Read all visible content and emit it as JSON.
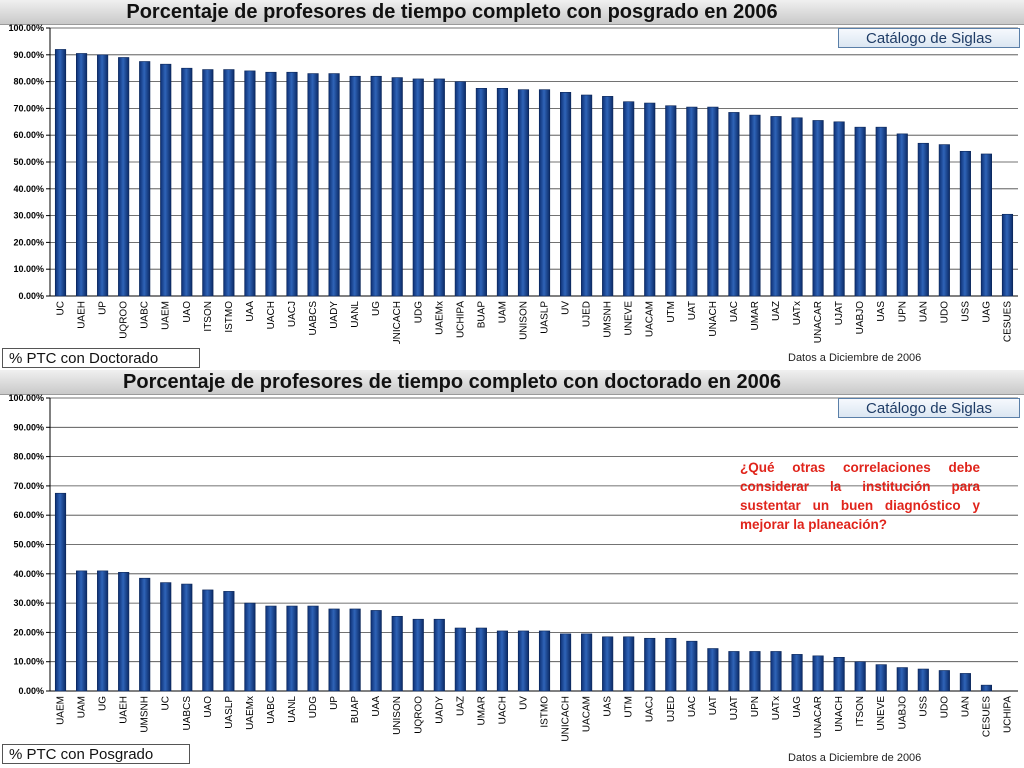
{
  "top_panel": {
    "catalog_button": "Catálogo de Siglas",
    "link_button": "% PTC con Doctorado",
    "date_note": "Datos a Diciembre de 2006"
  },
  "bottom_panel": {
    "catalog_button": "Catálogo de Siglas",
    "link_button": "% PTC con Posgrado",
    "date_note": "Datos a Diciembre de 2006",
    "question": "¿Qué otras correlaciones debe considerar la institución para sustentar un buen diagnóstico y mejorar la planeación?"
  },
  "chart_data": [
    {
      "type": "bar",
      "title": "Porcentaje de profesores de tiempo completo con posgrado en 2006",
      "xlabel": "",
      "ylabel": "",
      "ylim": [
        0,
        100
      ],
      "ytick_step": 10,
      "ytick_labels": [
        "0.00%",
        "10.00%",
        "20.00%",
        "30.00%",
        "40.00%",
        "50.00%",
        "60.00%",
        "70.00%",
        "80.00%",
        "90.00%",
        "100.00%"
      ],
      "grid": true,
      "categories": [
        "UC",
        "UAEH",
        "UP",
        "UQROO",
        "UABC",
        "UAEM",
        "UAO",
        "ITSON",
        "ISTMO",
        "UAA",
        "UACH",
        "UACJ",
        "UABCS",
        "UADY",
        "UANL",
        "UG",
        "UNICACH",
        "UDG",
        "UAEMx",
        "UCHIPA",
        "BUAP",
        "UAM",
        "UNISON",
        "UASLP",
        "UV",
        "UJED",
        "UMSNH",
        "UNEVE",
        "UACAM",
        "UTM",
        "UAT",
        "UNACH",
        "UAC",
        "UMAR",
        "UAZ",
        "UATx",
        "UNACAR",
        "UJAT",
        "UABJO",
        "UAS",
        "UPN",
        "UAN",
        "UDO",
        "USS",
        "UAG",
        "CESUES"
      ],
      "values": [
        92,
        90.5,
        90,
        89,
        87.5,
        86.5,
        85,
        84.5,
        84.5,
        84,
        83.5,
        83.5,
        83,
        83,
        82,
        82,
        81.5,
        81,
        81,
        80,
        77.5,
        77.5,
        77,
        77,
        76,
        75,
        74.5,
        72.5,
        72,
        71,
        70.5,
        70.5,
        68.5,
        67.5,
        67,
        66.5,
        65.5,
        65,
        63,
        63,
        60.5,
        57,
        56.5,
        54,
        53,
        30.5
      ]
    },
    {
      "type": "bar",
      "title": "Porcentaje de profesores de tiempo completo con doctorado en 2006",
      "xlabel": "",
      "ylabel": "",
      "ylim": [
        0,
        100
      ],
      "ytick_step": 10,
      "ytick_labels": [
        "0.00%",
        "10.00%",
        "20.00%",
        "30.00%",
        "40.00%",
        "50.00%",
        "60.00%",
        "70.00%",
        "80.00%",
        "90.00%",
        "100.00%"
      ],
      "grid": true,
      "categories": [
        "UAEM",
        "UAM",
        "UG",
        "UAEH",
        "UMSNH",
        "UC",
        "UABCS",
        "UAO",
        "UASLP",
        "UAEMx",
        "UABC",
        "UANL",
        "UDG",
        "UP",
        "BUAP",
        "UAA",
        "UNISON",
        "UQROO",
        "UADY",
        "UAZ",
        "UMAR",
        "UACH",
        "UV",
        "ISTMO",
        "UNICACH",
        "UACAM",
        "UAS",
        "UTM",
        "UACJ",
        "UJED",
        "UAC",
        "UAT",
        "UJAT",
        "UPN",
        "UATx",
        "UAG",
        "UNACAR",
        "UNACH",
        "ITSON",
        "UNEVE",
        "UABJO",
        "USS",
        "UDO",
        "UAN",
        "CESUES",
        "UCHIPA"
      ],
      "values": [
        67.5,
        41,
        41,
        40.5,
        38.5,
        37,
        36.5,
        34.5,
        34,
        30,
        29,
        29,
        29,
        28,
        28,
        27.5,
        25.5,
        24.5,
        24.5,
        21.5,
        21.5,
        20.5,
        20.5,
        20.5,
        19.5,
        19.5,
        18.5,
        18.5,
        18,
        18,
        17,
        14.5,
        13.5,
        13.5,
        13.5,
        12.5,
        12,
        11.5,
        10,
        9,
        8,
        7.5,
        7,
        6,
        2,
        0
      ]
    }
  ]
}
